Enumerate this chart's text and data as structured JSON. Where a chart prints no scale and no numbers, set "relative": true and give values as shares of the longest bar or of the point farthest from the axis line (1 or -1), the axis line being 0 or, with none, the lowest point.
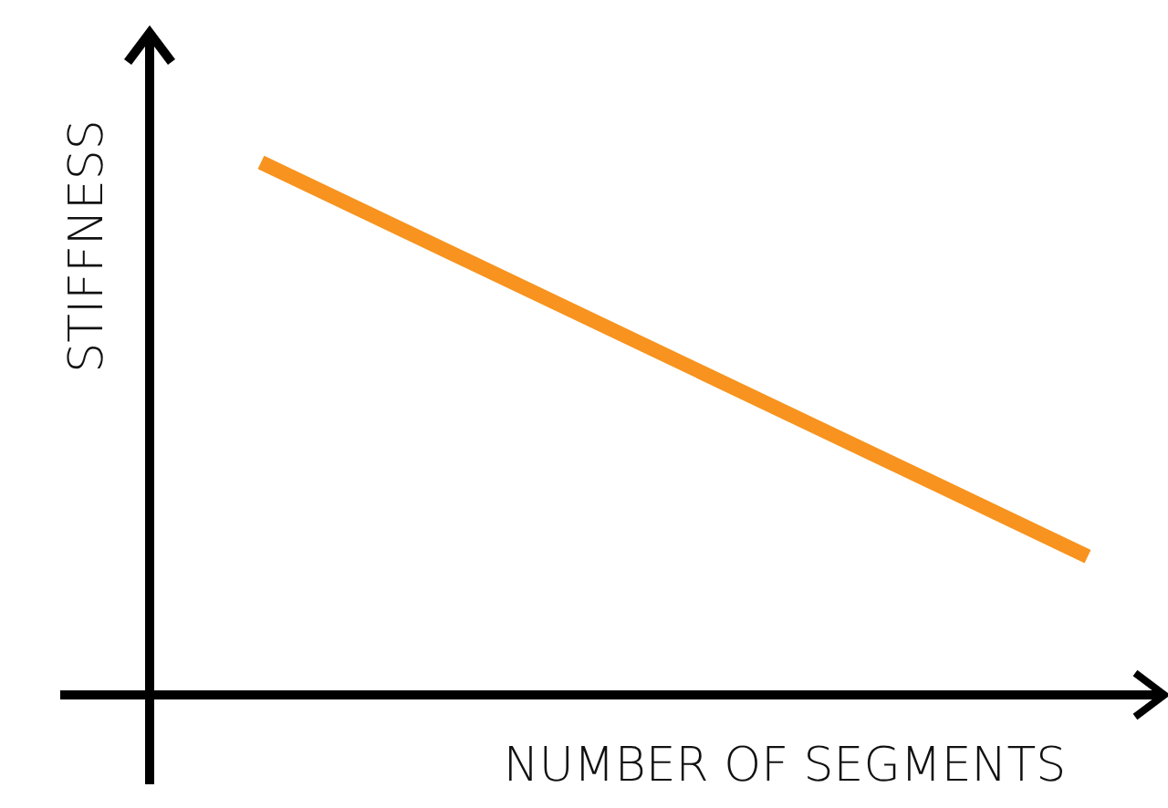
{
  "chart_data": {
    "type": "line",
    "relative": true,
    "xlabel": "NUMBER OF SEGMENTS",
    "ylabel": "STIFFNESS",
    "categories": [
      null,
      null
    ],
    "series": [
      {
        "color": "#f7931e",
        "values": [
          1,
          0.26
        ]
      }
    ],
    "marker": "none",
    "line_style": "solid",
    "grid": false
  }
}
